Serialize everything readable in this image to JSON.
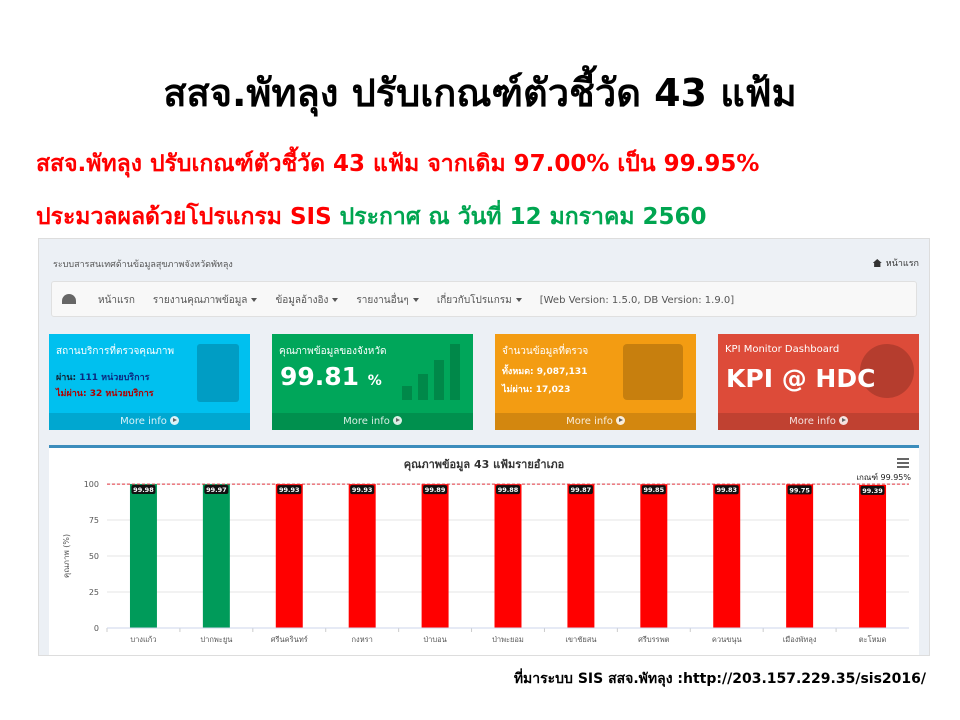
{
  "slide": {
    "title": "สสจ.พัทลุง ปรับเกณฑ์ตัวชี้วัด 43 แฟ้ม",
    "line1": "สสจ.พัทลุง ปรับเกณฑ์ตัวชี้วัด 43 แฟ้ม จากเดิม 97.00% เป็น 99.95%",
    "line2_red": "ประมวลผลด้วยโปรแกรม SIS",
    "line2_green": "ประกาศ ณ วันที่ 12 มกราคม 2560",
    "source": "ที่มาระบบ SIS สสจ.พัทลุง :http://203.157.229.35/sis2016/"
  },
  "app": {
    "system_title": "ระบบสารสนเทศด้านข้อมูลสุขภาพจังหวัดพัทลุง",
    "home_link": "หน้าแรก",
    "nav": [
      {
        "label": "หน้าแรก",
        "dropdown": false
      },
      {
        "label": "รายงานคุณภาพข้อมูล",
        "dropdown": true
      },
      {
        "label": "ข้อมูลอ้างอิง",
        "dropdown": true
      },
      {
        "label": "รายงานอื่นๆ",
        "dropdown": true
      },
      {
        "label": "เกี่ยวกับโปรแกรม",
        "dropdown": true
      }
    ],
    "version": "[Web Version: 1.5.0, DB Version: 1.9.0]"
  },
  "boxes": {
    "service": {
      "title": "สถานบริการที่ตรวจคุณภาพ",
      "pass_label": "ผ่าน:",
      "pass": "111 หน่วยบริการ",
      "fail_label": "ไม่ผ่าน:",
      "fail": "32 หน่วยบริการ",
      "more": "More info",
      "color": "#00c0ef",
      "icon": "building-icon"
    },
    "quality": {
      "title": "คุณภาพข้อมูลของจังหวัด",
      "value": "99.81",
      "unit": "%",
      "more": "More info",
      "color": "#00a65a",
      "icon": "signal-bars-icon"
    },
    "records": {
      "title": "จำนวนข้อมูลที่ตรวจ",
      "total_label": "ทั้งหมด:",
      "total": "9,087,131",
      "fail_label": "ไม่ผ่าน:",
      "fail": "17,023",
      "more": "More info",
      "color": "#f39c12",
      "icon": "calendar-check-icon"
    },
    "kpi": {
      "title": "KPI Monitor Dashboard",
      "value": "KPI @ HDC",
      "more": "More info",
      "color": "#dd4b39",
      "icon": "pie-chart-icon"
    }
  },
  "chart_data": {
    "type": "bar",
    "title": "คุณภาพข้อมูล 43 แฟ้มรายอำเภอ",
    "ylabel": "คุณภาพ (%)",
    "xlabel": "",
    "ylim": [
      0,
      100
    ],
    "yticks": [
      0,
      25,
      50,
      75,
      100
    ],
    "threshold": {
      "value": 99.95,
      "label": "เกณฑ์ 99.95%"
    },
    "categories": [
      "บางแก้ว",
      "ปากพะยูน",
      "ศรีนครินทร์",
      "กงหรา",
      "ป่าบอน",
      "ป่าพะยอม",
      "เขาชัยสน",
      "ศรีบรรพต",
      "ควนขนุน",
      "เมืองพัทลุง",
      "ตะโหมด"
    ],
    "values": [
      99.98,
      99.97,
      99.93,
      99.93,
      99.89,
      99.88,
      99.87,
      99.85,
      99.83,
      99.75,
      99.39
    ],
    "value_labels": [
      "99.98",
      "99.97",
      "99.93",
      "99.93",
      "99.89",
      "99.88",
      "99.87",
      "99.85",
      "99.83",
      "99.75",
      "99.39"
    ],
    "colors": {
      "pass": "#009b5a",
      "fail": "#ff0000",
      "threshold_line": "#e0303a"
    },
    "grid": true,
    "legend": "none"
  }
}
